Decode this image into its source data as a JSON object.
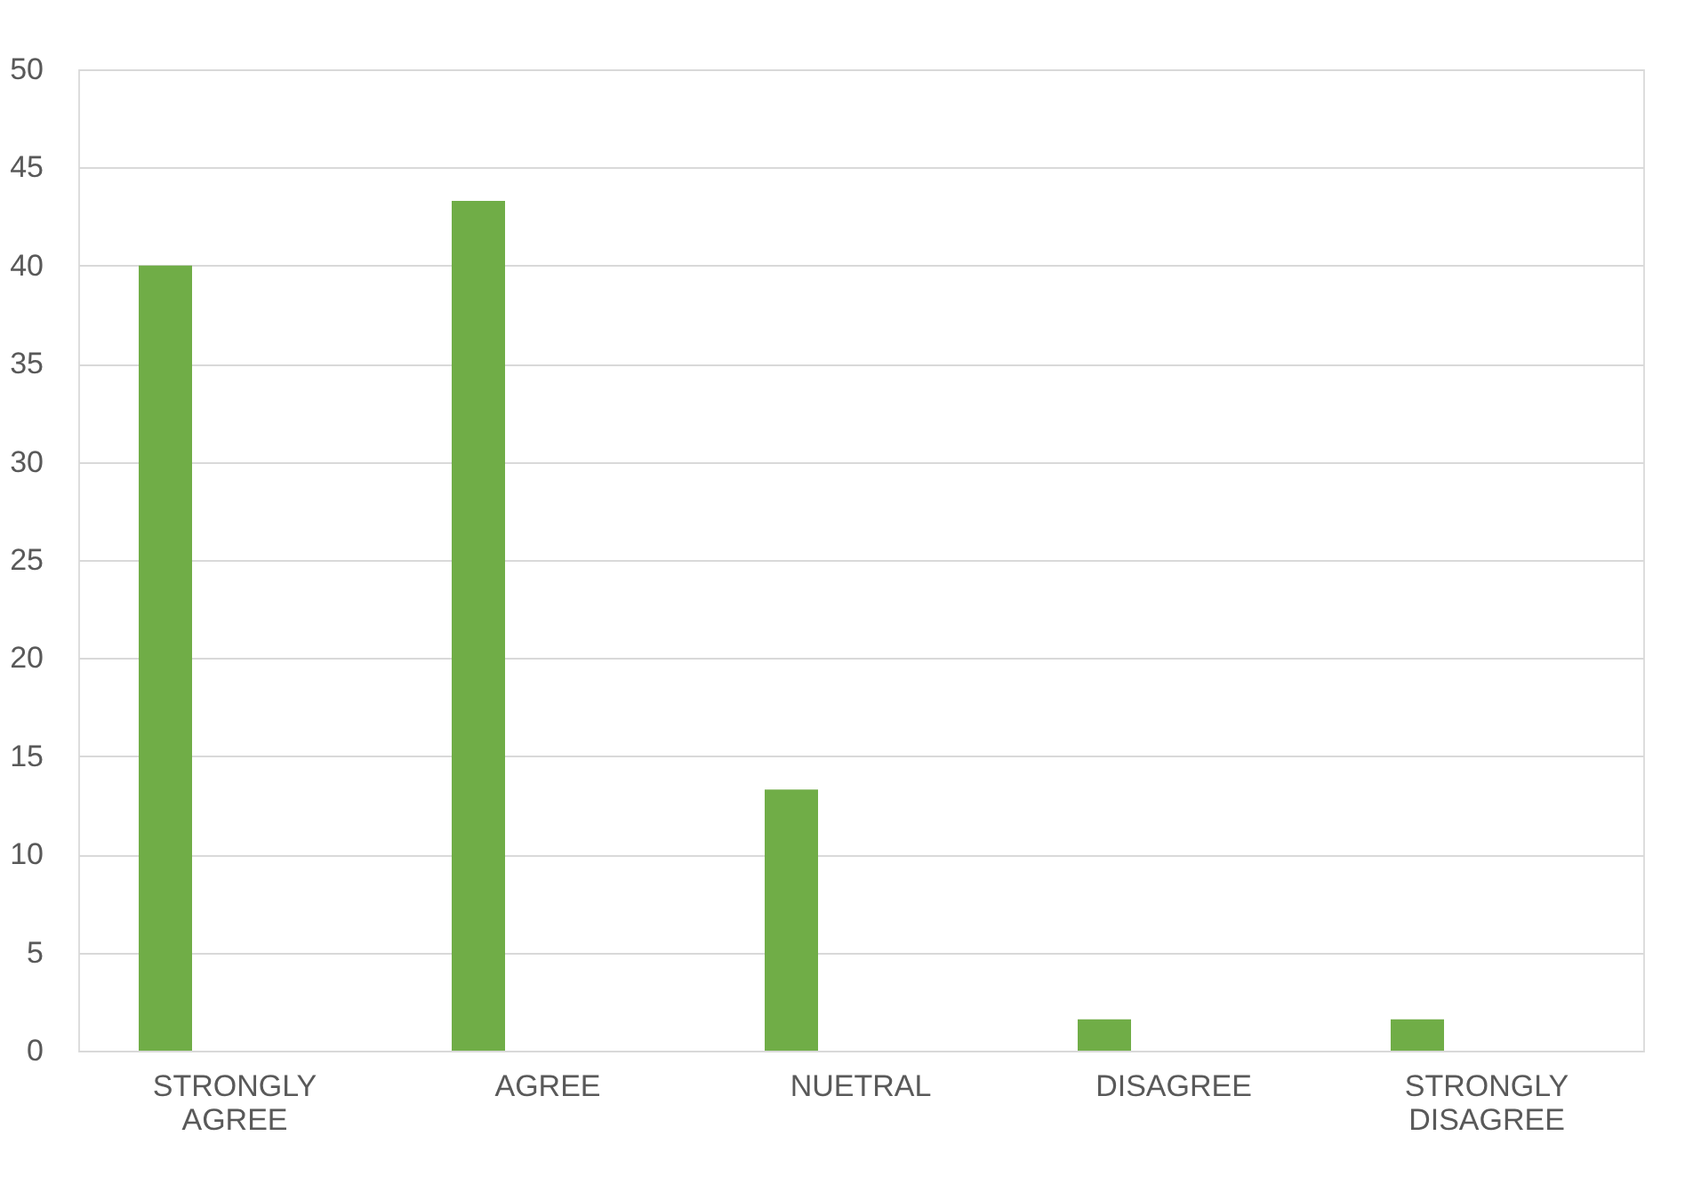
{
  "chart_data": {
    "type": "bar",
    "categories": [
      "STRONGLY AGREE",
      "AGREE",
      "NUETRAL",
      "DISAGREE",
      "STRONGLY DISAGREE"
    ],
    "values": [
      40,
      43.3,
      13.3,
      1.6,
      1.6
    ],
    "color": "#70ad47",
    "ylim": [
      0,
      50
    ],
    "yticks": [
      0,
      5,
      10,
      15,
      20,
      25,
      30,
      35,
      40,
      45,
      50
    ],
    "grid": "y"
  }
}
